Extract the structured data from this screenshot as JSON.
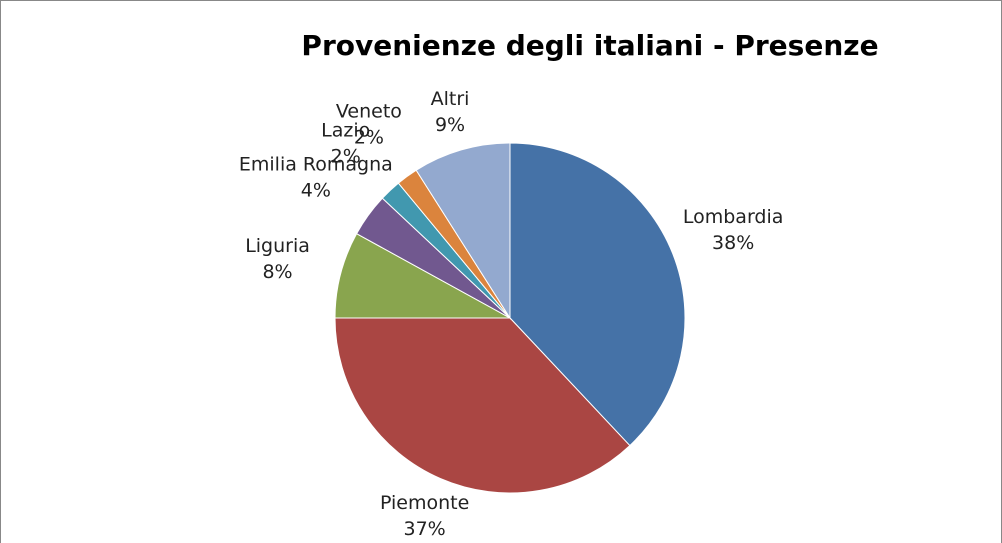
{
  "chart_data": {
    "type": "pie",
    "title": "Provenienze degli italiani - Presenze",
    "categories": [
      "Lombardia",
      "Piemonte",
      "Liguria",
      "Emilia Romagna",
      "Lazio",
      "Veneto",
      "Altri"
    ],
    "values": [
      38,
      37,
      8,
      4,
      2,
      2,
      9
    ],
    "value_labels": [
      "38%",
      "37%",
      "8%",
      "4%",
      "2%",
      "2%",
      "9%"
    ],
    "colors": [
      "#4572a7",
      "#aa4643",
      "#89a54e",
      "#71588f",
      "#4198af",
      "#db843d",
      "#93a9cf"
    ]
  }
}
